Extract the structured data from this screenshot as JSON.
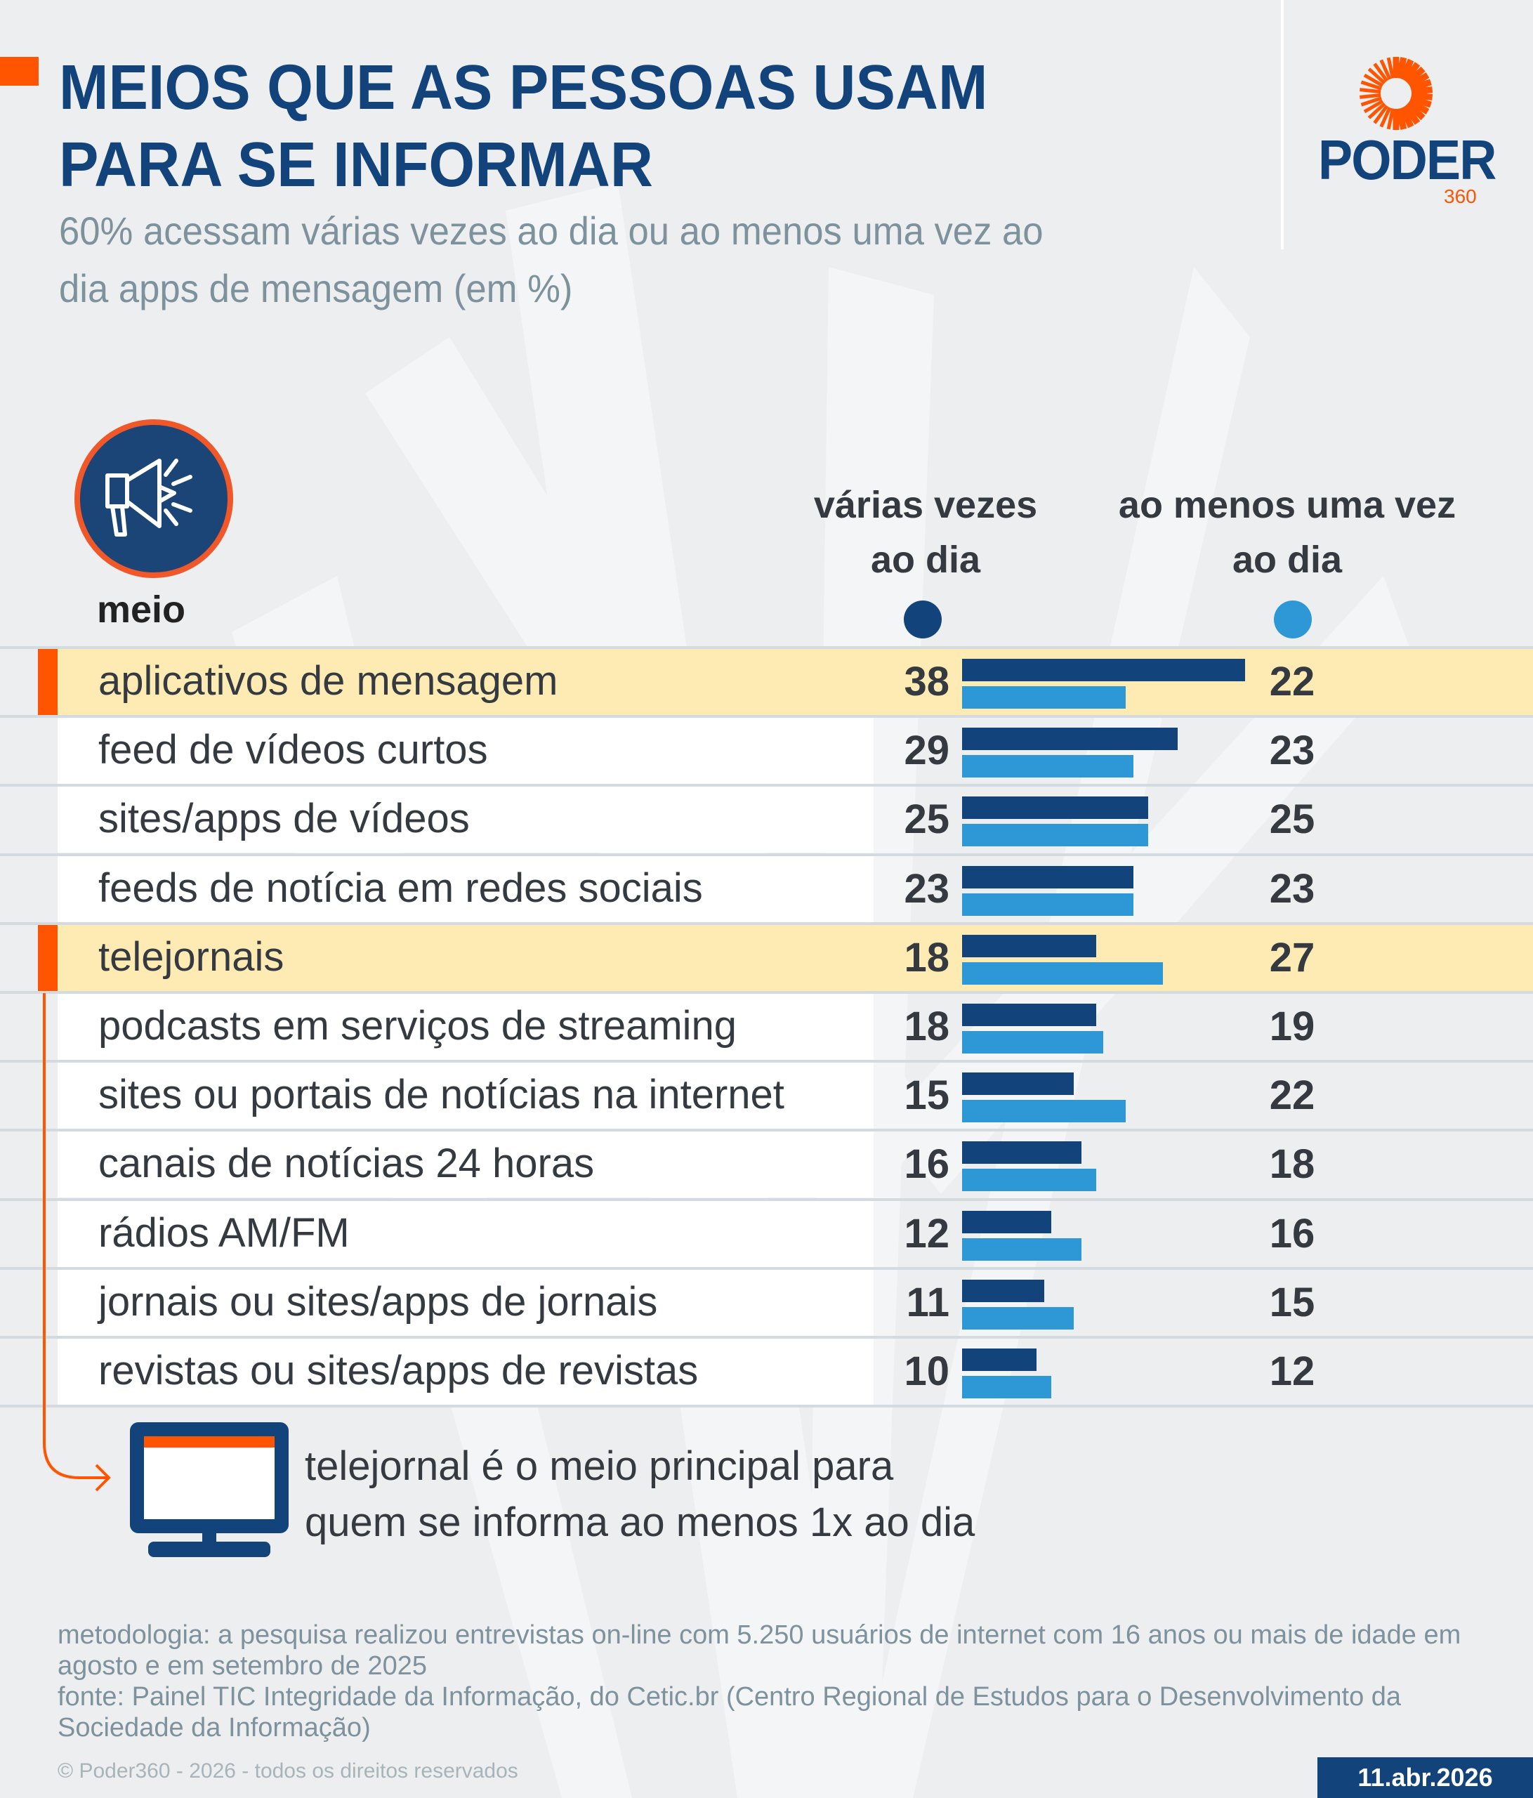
{
  "header": {
    "title_line1": "MEIOS QUE AS PESSOAS USAM",
    "title_line2": "PARA SE INFORMAR",
    "subtitle_line1": "60% acessam várias vezes ao dia ou ao menos uma vez ao",
    "subtitle_line2": "dia apps de mensagem (em %)"
  },
  "logo": {
    "word": "PODER",
    "number": "360",
    "icon": "sun-rays-icon"
  },
  "colors": {
    "brand_blue": "#12437b",
    "accent_orange": "#ff5500",
    "series_dark": "#12437b",
    "series_light": "#2e98d6",
    "highlight_row": "#feebb3"
  },
  "table": {
    "meio_icon": "megaphone-icon",
    "meio_label": "meio",
    "col1_line1": "várias vezes",
    "col1_line2": "ao dia",
    "col2_line1": "ao menos uma vez",
    "col2_line2": "ao dia"
  },
  "chart_data": {
    "type": "bar",
    "orientation": "horizontal",
    "title": "MEIOS QUE AS PESSOAS USAM PARA SE INFORMAR",
    "subtitle": "60% acessam várias vezes ao dia ou ao menos uma vez ao dia apps de mensagem (em %)",
    "xlabel": "",
    "ylabel": "meio",
    "unit": "%",
    "legend_placement": "top-right",
    "grid": false,
    "xlim": [
      0,
      40
    ],
    "categories": [
      "aplicativos de mensagem",
      "feed de vídeos curtos",
      "sites/apps de vídeos",
      "feeds de notícia em redes sociais",
      "telejornais",
      "podcasts em serviços de streaming",
      "sites ou portais de notícias na internet",
      "canais de notícias 24 horas",
      "rádios AM/FM",
      "jornais ou sites/apps de jornais",
      "revistas ou sites/apps de revistas"
    ],
    "highlighted": [
      "aplicativos de mensagem",
      "telejornais"
    ],
    "series": [
      {
        "name": "várias vezes ao dia",
        "color": "#12437b",
        "values": [
          38,
          29,
          25,
          23,
          18,
          18,
          15,
          16,
          12,
          11,
          10
        ]
      },
      {
        "name": "ao menos uma vez ao dia",
        "color": "#2e98d6",
        "values": [
          22,
          23,
          25,
          23,
          27,
          19,
          22,
          18,
          16,
          15,
          12
        ]
      }
    ]
  },
  "callout": {
    "icon": "television-icon",
    "line1": "telejornal é o meio principal para",
    "line2": "quem se informa ao menos 1x ao dia"
  },
  "footer": {
    "methodology": "metodologia: a pesquisa realizou entrevistas on-line com 5.250 usuários de internet com 16 anos ou mais de idade em agosto e em setembro de 2025",
    "source": "fonte: Painel TIC Integridade da Informação, do Cetic.br (Centro Regional de Estudos para o Desenvolvimento da Sociedade da Informação)",
    "copyright": "© Poder360 - 2026 - todos os direitos reservados",
    "date": "11.abr.2026"
  }
}
